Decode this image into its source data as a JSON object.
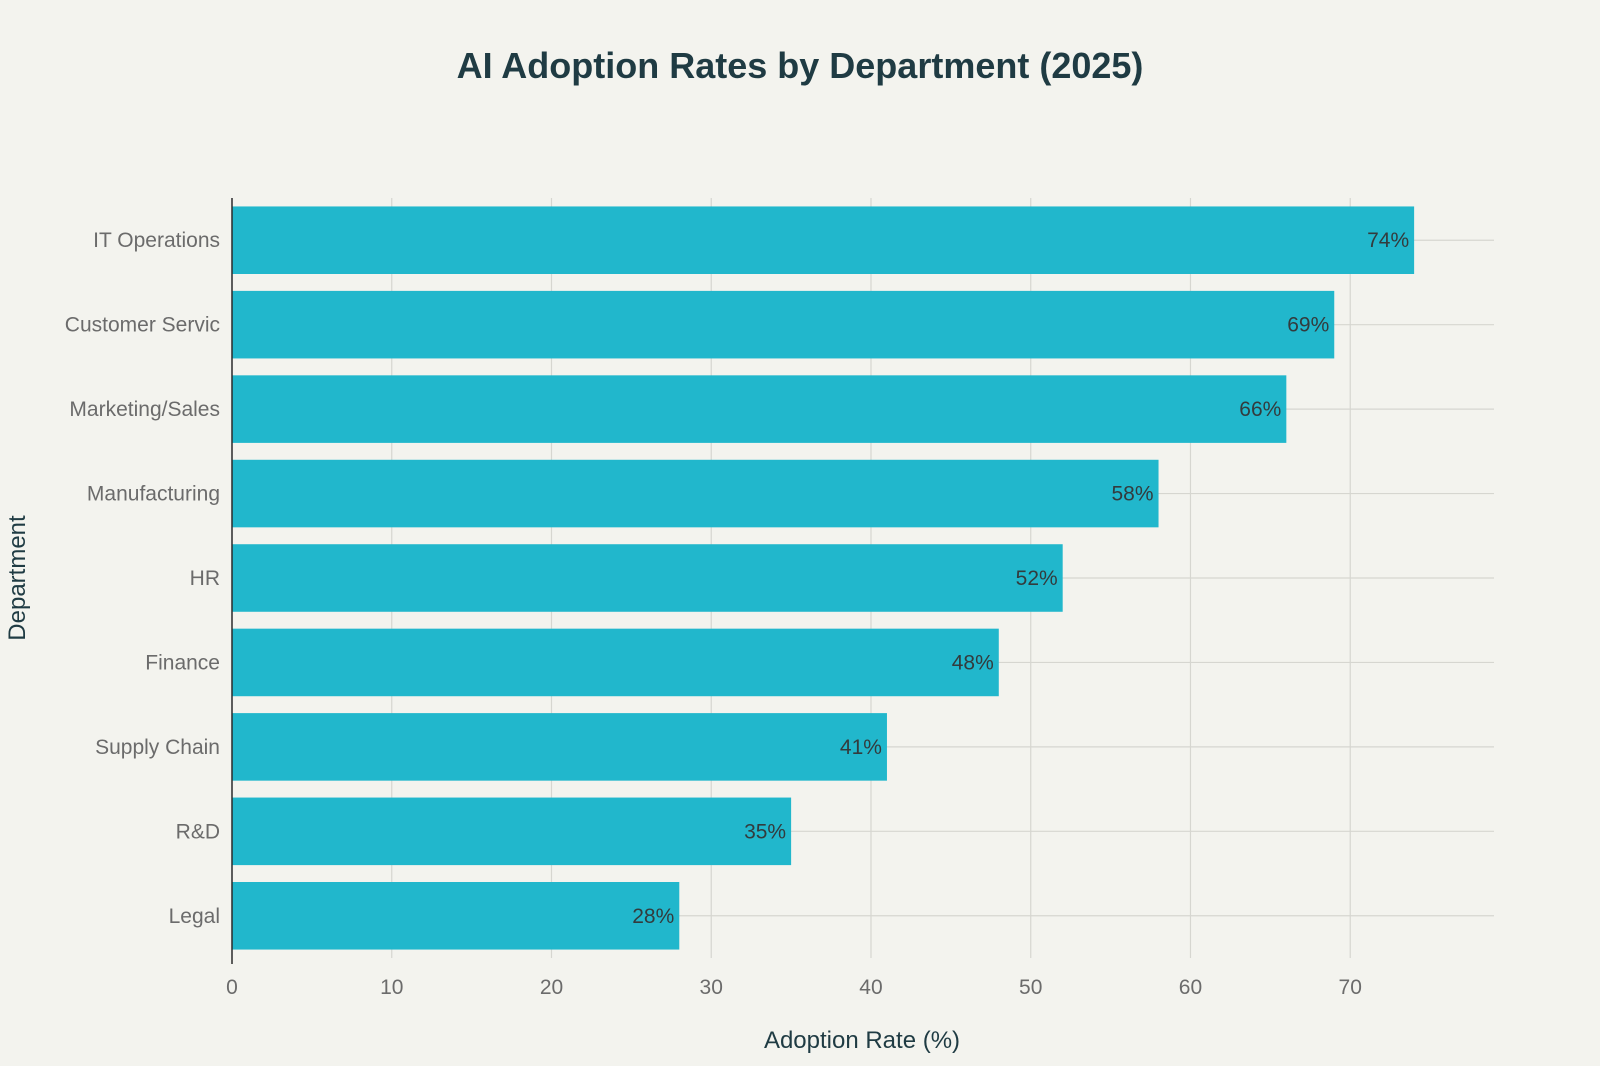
{
  "chart_data": {
    "type": "bar",
    "orientation": "horizontal",
    "title": "AI Adoption Rates by Department (2025)",
    "xlabel": "Adoption Rate (%)",
    "ylabel": "Department",
    "categories": [
      "IT Operations",
      "Customer Servic",
      "Marketing/Sales",
      "Manufacturing",
      "HR",
      "Finance",
      "Supply Chain",
      "R&D",
      "Legal"
    ],
    "values": [
      74,
      69,
      66,
      58,
      52,
      48,
      41,
      35,
      28
    ],
    "data_labels": [
      "74%",
      "69%",
      "66%",
      "58%",
      "52%",
      "48%",
      "41%",
      "35%",
      "28%"
    ],
    "xticks": [
      "0",
      "10",
      "20",
      "30",
      "40",
      "50",
      "60",
      "70"
    ],
    "xlim": [
      0,
      79
    ],
    "grid": true,
    "bar_color": "#21b7cc"
  }
}
